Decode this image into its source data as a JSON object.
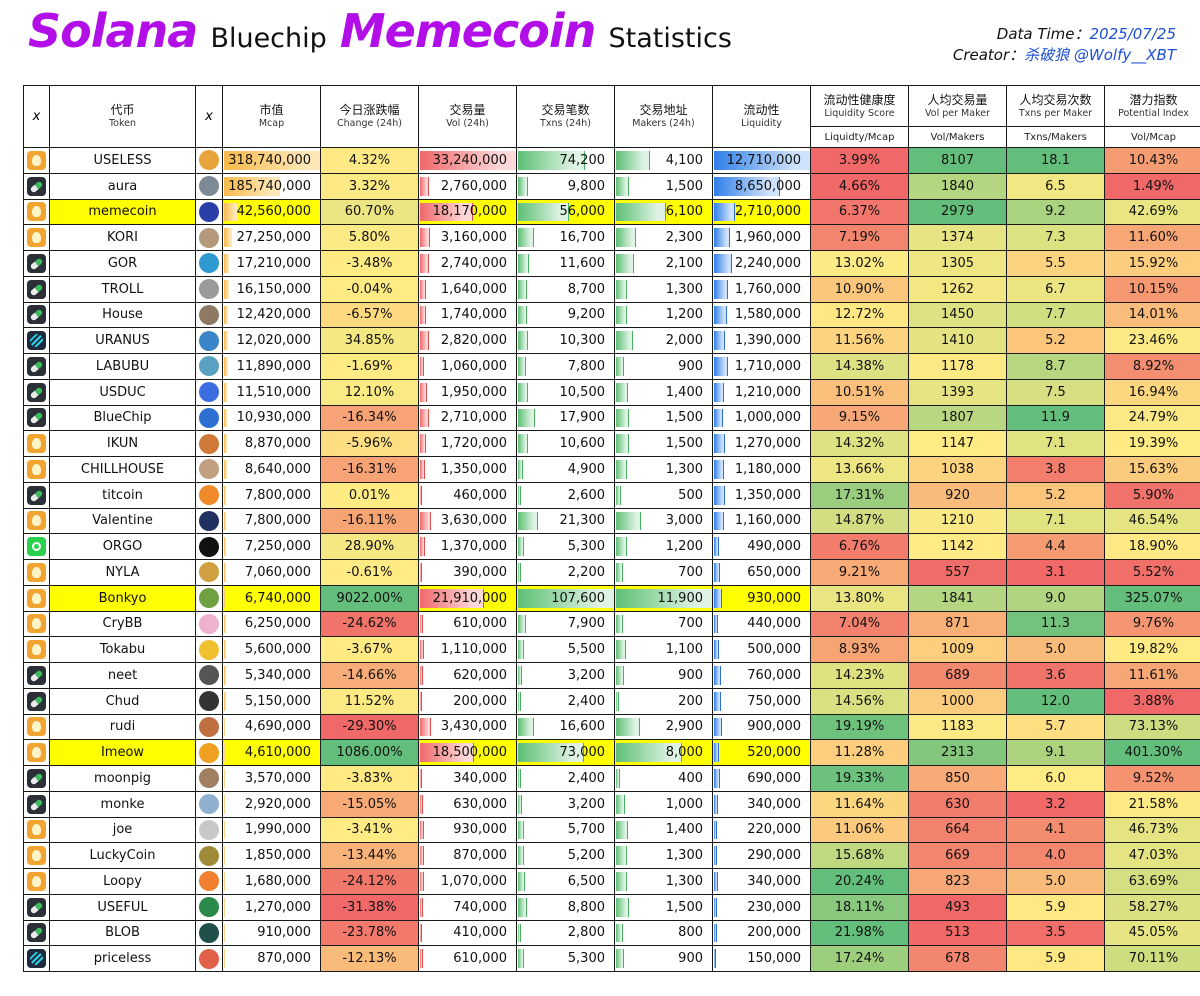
{
  "header": {
    "title_parts": [
      "Solana",
      "Bluechip",
      "Memecoin",
      "Statistics"
    ],
    "data_time_label": "Data Time：",
    "data_time_value": "2025/07/25",
    "creator_label": "Creator：",
    "creator_value": "杀破狼 @Wolfy__XBT"
  },
  "columns": [
    {
      "zh": "x",
      "en": ""
    },
    {
      "zh": "代币",
      "en": "Token"
    },
    {
      "zh": "x",
      "en": ""
    },
    {
      "zh": "市值",
      "en": "Mcap"
    },
    {
      "zh": "今日涨跌幅",
      "en": "Change (24h)"
    },
    {
      "zh": "交易量",
      "en": "Vol (24h)"
    },
    {
      "zh": "交易笔数",
      "en": "Txns (24h)"
    },
    {
      "zh": "交易地址",
      "en": "Makers (24h)"
    },
    {
      "zh": "流动性",
      "en": "Liquidity"
    },
    {
      "zh": "流动性健康度",
      "en": "Liquidity Score"
    },
    {
      "zh": "人均交易量",
      "en": "Vol per Maker"
    },
    {
      "zh": "人均交易次数",
      "en": "Txns per Maker"
    },
    {
      "zh": "潜力指数",
      "en": "Potential Index"
    }
  ],
  "subheaders": [
    "Liquidty/Mcap",
    "Vol/Makers",
    "Txns/Makers",
    "Vol/Mcap"
  ],
  "icons": {
    "platform_kinds": [
      "dog",
      "pill",
      "wave",
      "bonk"
    ]
  },
  "chart_data": {
    "type": "table",
    "fields": [
      "platform",
      "token",
      "mcap",
      "change_24h",
      "vol_24h",
      "txns_24h",
      "makers_24h",
      "liquidity",
      "liquidity_score",
      "vol_per_maker",
      "txns_per_maker",
      "potential_index",
      "highlight"
    ],
    "rows": [
      [
        "dog",
        "USELESS",
        "318,740,000",
        "4.32%",
        "33,240,000",
        "74,200",
        "4,100",
        "12,710,000",
        "3.99%",
        "8107",
        "18.1",
        "10.43%",
        false
      ],
      [
        "pill",
        "aura",
        "185,740,000",
        "3.32%",
        "2,760,000",
        "9,800",
        "1,500",
        "8,650,000",
        "4.66%",
        "1840",
        "6.5",
        "1.49%",
        false
      ],
      [
        "dog",
        "memecoin",
        "42,560,000",
        "60.70%",
        "18,170,000",
        "56,000",
        "6,100",
        "2,710,000",
        "6.37%",
        "2979",
        "9.2",
        "42.69%",
        true
      ],
      [
        "dog",
        "KORI",
        "27,250,000",
        "5.80%",
        "3,160,000",
        "16,700",
        "2,300",
        "1,960,000",
        "7.19%",
        "1374",
        "7.3",
        "11.60%",
        false
      ],
      [
        "pill",
        "GOR",
        "17,210,000",
        "-3.48%",
        "2,740,000",
        "11,600",
        "2,100",
        "2,240,000",
        "13.02%",
        "1305",
        "5.5",
        "15.92%",
        false
      ],
      [
        "pill",
        "TROLL",
        "16,150,000",
        "-0.04%",
        "1,640,000",
        "8,700",
        "1,300",
        "1,760,000",
        "10.90%",
        "1262",
        "6.7",
        "10.15%",
        false
      ],
      [
        "pill",
        "House",
        "12,420,000",
        "-6.57%",
        "1,740,000",
        "9,200",
        "1,200",
        "1,580,000",
        "12.72%",
        "1450",
        "7.7",
        "14.01%",
        false
      ],
      [
        "wave",
        "URANUS",
        "12,020,000",
        "34.85%",
        "2,820,000",
        "10,300",
        "2,000",
        "1,390,000",
        "11.56%",
        "1410",
        "5.2",
        "23.46%",
        false
      ],
      [
        "pill",
        "LABUBU",
        "11,890,000",
        "-1.69%",
        "1,060,000",
        "7,800",
        "900",
        "1,710,000",
        "14.38%",
        "1178",
        "8.7",
        "8.92%",
        false
      ],
      [
        "pill",
        "USDUC",
        "11,510,000",
        "12.10%",
        "1,950,000",
        "10,500",
        "1,400",
        "1,210,000",
        "10.51%",
        "1393",
        "7.5",
        "16.94%",
        false
      ],
      [
        "pill",
        "BlueChip",
        "10,930,000",
        "-16.34%",
        "2,710,000",
        "17,900",
        "1,500",
        "1,000,000",
        "9.15%",
        "1807",
        "11.9",
        "24.79%",
        false
      ],
      [
        "dog",
        "IKUN",
        "8,870,000",
        "-5.96%",
        "1,720,000",
        "10,600",
        "1,500",
        "1,270,000",
        "14.32%",
        "1147",
        "7.1",
        "19.39%",
        false
      ],
      [
        "dog",
        "CHILLHOUSE",
        "8,640,000",
        "-16.31%",
        "1,350,000",
        "4,900",
        "1,300",
        "1,180,000",
        "13.66%",
        "1038",
        "3.8",
        "15.63%",
        false
      ],
      [
        "pill",
        "titcoin",
        "7,800,000",
        "0.01%",
        "460,000",
        "2,600",
        "500",
        "1,350,000",
        "17.31%",
        "920",
        "5.2",
        "5.90%",
        false
      ],
      [
        "dog",
        "Valentine",
        "7,800,000",
        "-16.11%",
        "3,630,000",
        "21,300",
        "3,000",
        "1,160,000",
        "14.87%",
        "1210",
        "7.1",
        "46.54%",
        false
      ],
      [
        "bonk",
        "ORGO",
        "7,250,000",
        "28.90%",
        "1,370,000",
        "5,300",
        "1,200",
        "490,000",
        "6.76%",
        "1142",
        "4.4",
        "18.90%",
        false
      ],
      [
        "dog",
        "NYLA",
        "7,060,000",
        "-0.61%",
        "390,000",
        "2,200",
        "700",
        "650,000",
        "9.21%",
        "557",
        "3.1",
        "5.52%",
        false
      ],
      [
        "dog",
        "Bonkyo",
        "6,740,000",
        "9022.00%",
        "21,910,000",
        "107,600",
        "11,900",
        "930,000",
        "13.80%",
        "1841",
        "9.0",
        "325.07%",
        true
      ],
      [
        "dog",
        "CryBB",
        "6,250,000",
        "-24.62%",
        "610,000",
        "7,900",
        "700",
        "440,000",
        "7.04%",
        "871",
        "11.3",
        "9.76%",
        false
      ],
      [
        "dog",
        "Tokabu",
        "5,600,000",
        "-3.67%",
        "1,110,000",
        "5,500",
        "1,100",
        "500,000",
        "8.93%",
        "1009",
        "5.0",
        "19.82%",
        false
      ],
      [
        "pill",
        "neet",
        "5,340,000",
        "-14.66%",
        "620,000",
        "3,200",
        "900",
        "760,000",
        "14.23%",
        "689",
        "3.6",
        "11.61%",
        false
      ],
      [
        "pill",
        "Chud",
        "5,150,000",
        "11.52%",
        "200,000",
        "2,400",
        "200",
        "750,000",
        "14.56%",
        "1000",
        "12.0",
        "3.88%",
        false
      ],
      [
        "dog",
        "rudi",
        "4,690,000",
        "-29.30%",
        "3,430,000",
        "16,600",
        "2,900",
        "900,000",
        "19.19%",
        "1183",
        "5.7",
        "73.13%",
        false
      ],
      [
        "dog",
        "Imeow",
        "4,610,000",
        "1086.00%",
        "18,500,000",
        "73,000",
        "8,000",
        "520,000",
        "11.28%",
        "2313",
        "9.1",
        "401.30%",
        true
      ],
      [
        "pill",
        "moonpig",
        "3,570,000",
        "-3.83%",
        "340,000",
        "2,400",
        "400",
        "690,000",
        "19.33%",
        "850",
        "6.0",
        "9.52%",
        false
      ],
      [
        "pill",
        "monke",
        "2,920,000",
        "-15.05%",
        "630,000",
        "3,200",
        "1,000",
        "340,000",
        "11.64%",
        "630",
        "3.2",
        "21.58%",
        false
      ],
      [
        "dog",
        "joe",
        "1,990,000",
        "-3.41%",
        "930,000",
        "5,700",
        "1,400",
        "220,000",
        "11.06%",
        "664",
        "4.1",
        "46.73%",
        false
      ],
      [
        "dog",
        "LuckyCoin",
        "1,850,000",
        "-13.44%",
        "870,000",
        "5,200",
        "1,300",
        "290,000",
        "15.68%",
        "669",
        "4.0",
        "47.03%",
        false
      ],
      [
        "dog",
        "Loopy",
        "1,680,000",
        "-24.12%",
        "1,070,000",
        "6,500",
        "1,300",
        "340,000",
        "20.24%",
        "823",
        "5.0",
        "63.69%",
        false
      ],
      [
        "pill",
        "USEFUL",
        "1,270,000",
        "-31.38%",
        "740,000",
        "8,800",
        "1,500",
        "230,000",
        "18.11%",
        "493",
        "5.9",
        "58.27%",
        false
      ],
      [
        "pill",
        "BLOB",
        "910,000",
        "-23.78%",
        "410,000",
        "2,800",
        "800",
        "200,000",
        "21.98%",
        "513",
        "3.5",
        "45.05%",
        false
      ],
      [
        "wave",
        "priceless",
        "870,000",
        "-12.13%",
        "610,000",
        "5,300",
        "900",
        "150,000",
        "17.24%",
        "678",
        "5.9",
        "70.11%",
        false
      ]
    ]
  }
}
